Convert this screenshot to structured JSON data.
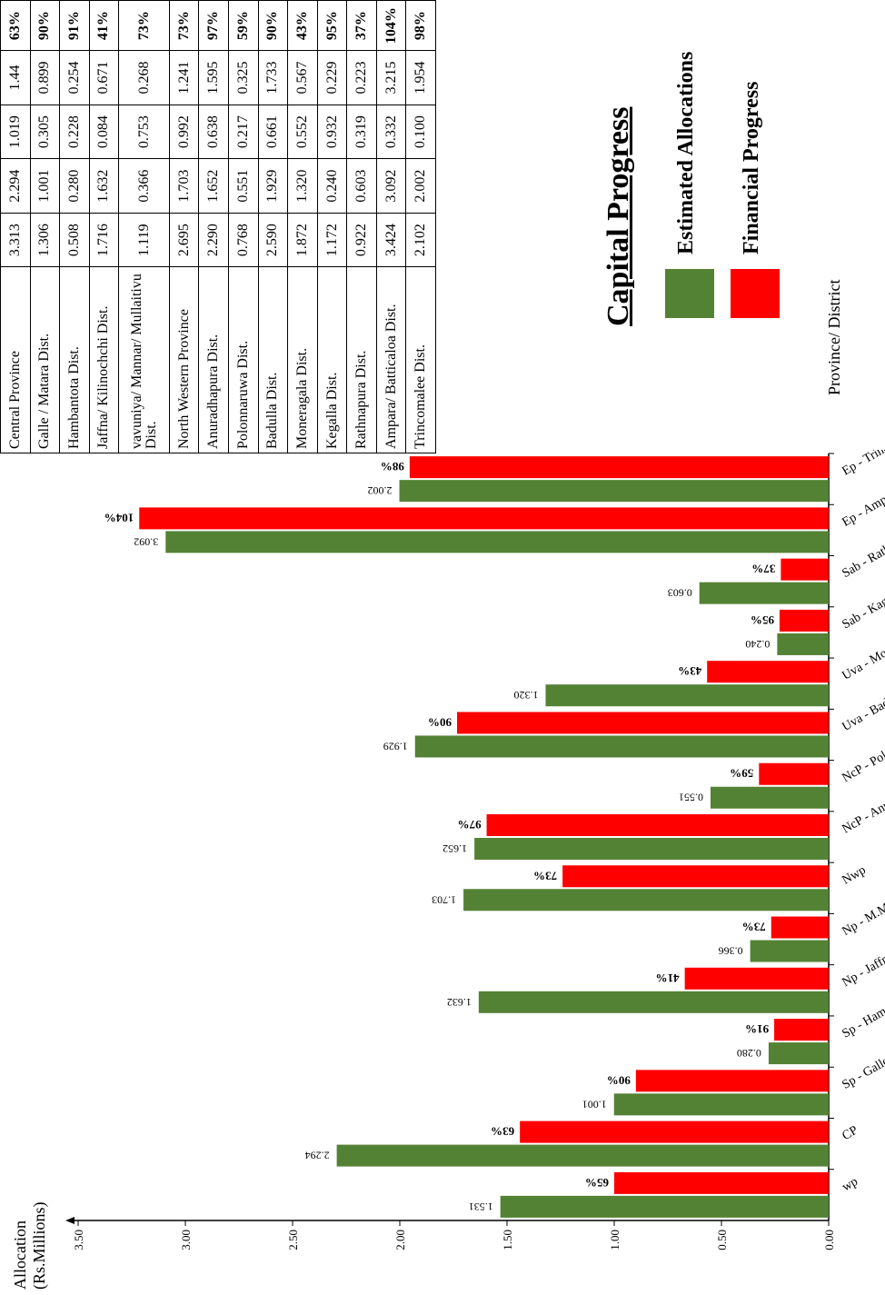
{
  "chart_data": {
    "type": "bar",
    "title": "Capital Progress",
    "xlabel": "Province/ District",
    "ylabel": "Allocation (Rs.Millions)",
    "ylabel_lines": [
      "Allocation",
      "(Rs.Millions)"
    ],
    "ylim": [
      0,
      3.5
    ],
    "y_ticks": [
      "0.00",
      "0.50",
      "1.00",
      "1.50",
      "2.00",
      "2.50",
      "3.00",
      "3.50"
    ],
    "categories": [
      "wp",
      "CP",
      "Sp - Galle",
      "Sp - Ham",
      "Np - Jaffna",
      "Np - M.M.V.",
      "Nwp",
      "NcP - Anu.",
      "NcP - Pol.",
      "Uva - Badu.",
      "Uva - Mon.",
      "Sab - Kagella",
      "Sab - Rath.",
      "Ep - Amp.",
      "Ep - Trinco"
    ],
    "series": [
      {
        "name": "Estimated Allocations",
        "color": "#548235",
        "values": [
          1.531,
          2.294,
          1.001,
          0.28,
          1.632,
          0.366,
          1.703,
          1.652,
          0.551,
          1.929,
          1.32,
          0.24,
          0.603,
          3.092,
          2.002
        ]
      },
      {
        "name": "Financial Progress",
        "color": "#ff0000",
        "values": [
          1.0,
          1.44,
          0.899,
          0.254,
          0.671,
          0.268,
          1.241,
          1.595,
          0.325,
          1.733,
          0.567,
          0.229,
          0.223,
          3.215,
          1.954
        ]
      }
    ],
    "value_labels": [
      "1.531",
      "2.294",
      "1.001",
      "0.280",
      "1.632",
      "0.366",
      "1.703",
      "1.652",
      "0.551",
      "1.929",
      "1.320",
      "0.240",
      "0.603",
      "3.092",
      "2.002"
    ],
    "percent_labels": [
      "65%",
      "63%",
      "90%",
      "91%",
      "41%",
      "73%",
      "73%",
      "97%",
      "59%",
      "90%",
      "43%",
      "95%",
      "37%",
      "104%",
      "98%"
    ],
    "legend_position": "bottom-right",
    "grid": false
  },
  "table": {
    "rows": [
      [
        "Central Province",
        "3.313",
        "2.294",
        "1.019",
        "1.44",
        "63%"
      ],
      [
        "Galle / Matara Dist.",
        "1.306",
        "1.001",
        "0.305",
        "0.899",
        "90%"
      ],
      [
        "Hambantota Dist.",
        "0.508",
        "0.280",
        "0.228",
        "0.254",
        "91%"
      ],
      [
        "Jaffna/ Kilinochchi Dist.",
        "1.716",
        "1.632",
        "0.084",
        "0.671",
        "41%"
      ],
      [
        "vavuniya/ Mannar/ Mullaitivu Dist.",
        "1.119",
        "0.366",
        "0.753",
        "0.268",
        "73%"
      ],
      [
        "North Western Province",
        "2.695",
        "1.703",
        "0.992",
        "1.241",
        "73%"
      ],
      [
        "Anuradhapura Dist.",
        "2.290",
        "1.652",
        "0.638",
        "1.595",
        "97%"
      ],
      [
        "Polonnaruwa Dist.",
        "0.768",
        "0.551",
        "0.217",
        "0.325",
        "59%"
      ],
      [
        "Badulla Dist.",
        "2.590",
        "1.929",
        "0.661",
        "1.733",
        "90%"
      ],
      [
        "Moneragala Dist.",
        "1.872",
        "1.320",
        "0.552",
        "0.567",
        "43%"
      ],
      [
        "Kegalla Dist.",
        "1.172",
        "0.240",
        "0.932",
        "0.229",
        "95%"
      ],
      [
        "Rathnapura Dist.",
        "0.922",
        "0.603",
        "0.319",
        "0.223",
        "37%"
      ],
      [
        "Ampara/ Batticaloa Dist.",
        "3.424",
        "3.092",
        "0.332",
        "3.215",
        "104%"
      ],
      [
        "Trincomalee Dist.",
        "2.102",
        "2.002",
        "0.100",
        "1.954",
        "98%"
      ]
    ]
  },
  "legend": {
    "title": "Capital Progress",
    "items": [
      {
        "label": "Estimated Allocations",
        "color": "#548235"
      },
      {
        "label": "Financial Progress",
        "color": "#ff0000"
      }
    ]
  }
}
